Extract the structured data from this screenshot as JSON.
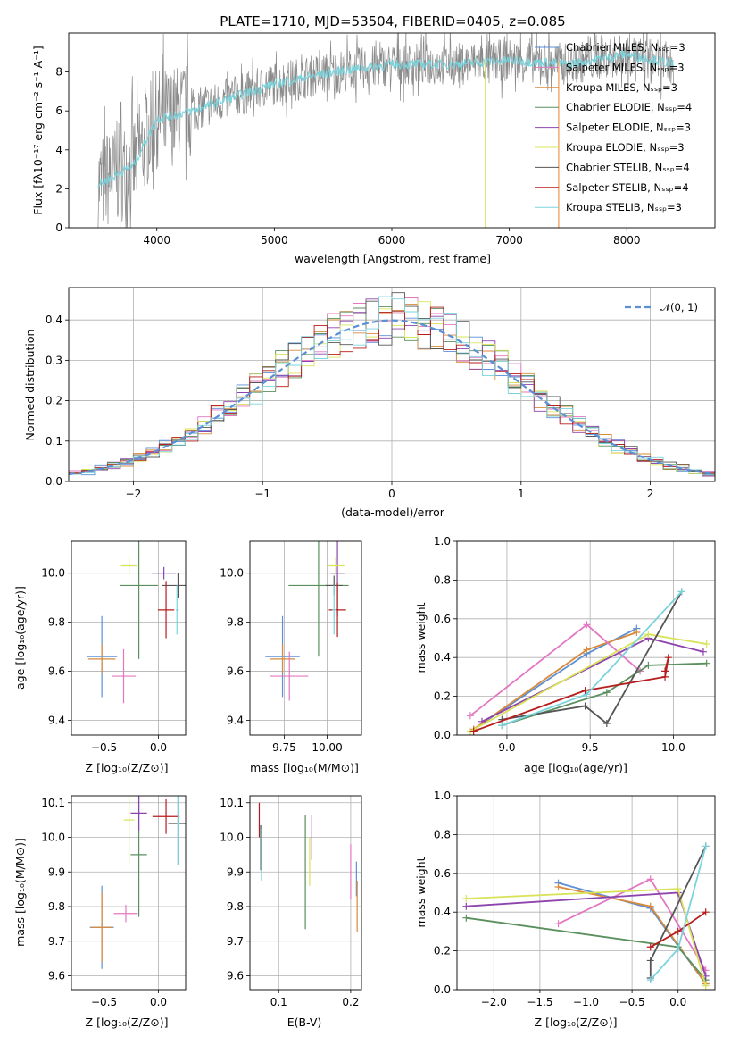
{
  "palette": [
    "#5b8fd6",
    "#e8822d",
    "#d98a3a",
    "#5a8f5e",
    "#8e44ad",
    "#d9e35a",
    "#555555",
    "#b71c1c",
    "#7ad3dc",
    "#e377c2"
  ],
  "chart_data": [
    {
      "id": "spectrum",
      "type": "line",
      "title": "PLATE=1710, MJD=53504, FIBERID=0405, z=0.085",
      "xlabel": "wavelength [Angstrom, rest frame]",
      "ylabel": "Flux [fλ10⁻¹⁷ erg cm⁻² s⁻¹ A⁻¹]",
      "xlim": [
        3250,
        8750
      ],
      "ylim": [
        0,
        10
      ],
      "xticks": [
        4000,
        5000,
        6000,
        7000,
        8000
      ],
      "yticks": [
        0,
        2,
        4,
        6,
        8
      ],
      "grid": false,
      "legend_position": "right",
      "series": [
        {
          "name": "Chabrier MILES, Nₛₛₚ=3",
          "color": "#5b8fd6"
        },
        {
          "name": "Salpeter MILES, Nₛₛₚ=3",
          "color": "#e377c2"
        },
        {
          "name": "Kroupa MILES, Nₛₛₚ=3",
          "color": "#d98a3a"
        },
        {
          "name": "Chabrier ELODIE, Nₛₛₚ=4",
          "color": "#5a8f5e"
        },
        {
          "name": "Salpeter ELODIE, Nₛₛₚ=3",
          "color": "#8e44ad"
        },
        {
          "name": "Kroupa ELODIE, Nₛₛₚ=3",
          "color": "#d9e35a"
        },
        {
          "name": "Chabrier STELIB, Nₛₛₚ=4",
          "color": "#555555"
        },
        {
          "name": "Salpeter STELIB, Nₛₛₚ=4",
          "color": "#b71c1c"
        },
        {
          "name": "Kroupa STELIB, Nₛₛₚ=3",
          "color": "#7ad3dc"
        }
      ],
      "envelope": {
        "x": [
          3500,
          3800,
          4000,
          4300,
          4700,
          5000,
          5500,
          6000,
          6500,
          7000,
          7500,
          8000,
          8400
        ],
        "y": [
          2.2,
          3.2,
          5.6,
          6.0,
          6.8,
          7.4,
          8.0,
          8.4,
          8.4,
          8.6,
          8.4,
          8.9,
          8.4
        ]
      }
    },
    {
      "id": "residuals",
      "type": "line",
      "xlabel": "(data-model)/error",
      "ylabel": "Normed distribution",
      "xlim": [
        -2.5,
        2.5
      ],
      "ylim": [
        0,
        0.48
      ],
      "xticks": [
        -2,
        -1,
        0,
        1,
        2
      ],
      "yticks": [
        0.0,
        0.1,
        0.2,
        0.3,
        0.4
      ],
      "grid": true,
      "legend_position": "top-right",
      "legend_label": "𝒩(0, 1)"
    },
    {
      "id": "age_vs_Z",
      "type": "scatter",
      "xlabel": "Z [log₁₀(Z/Z⊙)]",
      "ylabel": "age  [log₁₀(age/yr)]",
      "xlim": [
        -0.8,
        0.25
      ],
      "ylim": [
        9.34,
        10.13
      ],
      "xticks": [
        -0.5,
        0.0
      ],
      "yticks": [
        9.4,
        9.6,
        9.8,
        10.0
      ],
      "grid": true,
      "points": [
        {
          "x": -0.52,
          "y": 9.66,
          "xerr": 0.28,
          "yerr": 0.33,
          "color": "#5b8fd6"
        },
        {
          "x": -0.52,
          "y": 9.65,
          "xerr": 0.25,
          "yerr": 0.12,
          "color": "#d98a3a"
        },
        {
          "x": -0.32,
          "y": 9.58,
          "xerr": 0.22,
          "yerr": 0.22,
          "color": "#e377c2"
        },
        {
          "x": -0.18,
          "y": 9.95,
          "xerr": 0.35,
          "yerr": 0.6,
          "color": "#5a8f5e"
        },
        {
          "x": 0.05,
          "y": 10.0,
          "xerr": 0.22,
          "yerr": 0.05,
          "color": "#8e44ad"
        },
        {
          "x": -0.27,
          "y": 10.03,
          "xerr": 0.15,
          "yerr": 0.07,
          "color": "#d9e35a"
        },
        {
          "x": 0.18,
          "y": 9.95,
          "xerr": 0.3,
          "yerr": 0.1,
          "color": "#555555"
        },
        {
          "x": 0.07,
          "y": 9.85,
          "xerr": 0.15,
          "yerr": 0.23,
          "color": "#b71c1c"
        },
        {
          "x": 0.17,
          "y": 9.85,
          "xerr": 0.02,
          "yerr": 0.2,
          "color": "#7ad3dc"
        }
      ]
    },
    {
      "id": "age_vs_mass",
      "type": "scatter",
      "xlabel": "mass [log₁₀(M/M⊙)]",
      "ylabel": "",
      "xlim": [
        9.55,
        10.2
      ],
      "ylim": [
        9.34,
        10.13
      ],
      "xticks": [
        9.75,
        10.0
      ],
      "yticks": [
        9.4,
        9.6,
        9.8,
        10.0
      ],
      "grid": true,
      "points": [
        {
          "x": 9.74,
          "y": 9.66,
          "xerr": 0.2,
          "yerr": 0.33,
          "color": "#5b8fd6"
        },
        {
          "x": 9.74,
          "y": 9.65,
          "xerr": 0.15,
          "yerr": 0.12,
          "color": "#d98a3a"
        },
        {
          "x": 9.78,
          "y": 9.58,
          "xerr": 0.22,
          "yerr": 0.2,
          "color": "#e377c2"
        },
        {
          "x": 9.95,
          "y": 9.95,
          "xerr": 0.35,
          "yerr": 0.58,
          "color": "#5a8f5e"
        },
        {
          "x": 10.06,
          "y": 10.0,
          "xerr": 0.08,
          "yerr": 0.35,
          "color": "#8e44ad"
        },
        {
          "x": 10.05,
          "y": 10.03,
          "xerr": 0.1,
          "yerr": 0.07,
          "color": "#d9e35a"
        },
        {
          "x": 10.04,
          "y": 9.95,
          "xerr": 0.1,
          "yerr": 0.08,
          "color": "#555555"
        },
        {
          "x": 10.06,
          "y": 9.85,
          "xerr": 0.1,
          "yerr": 0.22,
          "color": "#b71c1c"
        },
        {
          "x": 10.04,
          "y": 9.85,
          "xerr": 0.02,
          "yerr": 0.2,
          "color": "#7ad3dc"
        }
      ]
    },
    {
      "id": "weight_vs_age",
      "type": "line",
      "xlabel": "age  [log₁₀(age/yr)]",
      "ylabel": "mass weight",
      "xlim": [
        8.7,
        10.25
      ],
      "ylim": [
        0,
        1
      ],
      "xticks": [
        9.0,
        9.5,
        10.0
      ],
      "yticks": [
        0.0,
        0.2,
        0.4,
        0.6,
        0.8,
        1.0
      ],
      "grid": true,
      "series": [
        {
          "color": "#5b8fd6",
          "x": [
            8.8,
            9.48,
            9.78
          ],
          "y": [
            0.03,
            0.42,
            0.55
          ]
        },
        {
          "color": "#d98a3a",
          "x": [
            8.8,
            9.48,
            9.78
          ],
          "y": [
            0.03,
            0.44,
            0.53
          ]
        },
        {
          "color": "#e377c2",
          "x": [
            8.78,
            9.48,
            9.8
          ],
          "y": [
            0.1,
            0.57,
            0.33
          ]
        },
        {
          "color": "#5a8f5e",
          "x": [
            8.97,
            9.6,
            9.85,
            10.2
          ],
          "y": [
            0.05,
            0.22,
            0.36,
            0.37
          ]
        },
        {
          "color": "#8e44ad",
          "x": [
            8.85,
            9.85,
            10.18
          ],
          "y": [
            0.07,
            0.5,
            0.43
          ]
        },
        {
          "color": "#d9e35a",
          "x": [
            8.78,
            9.85,
            10.2
          ],
          "y": [
            0.02,
            0.52,
            0.47
          ]
        },
        {
          "color": "#555555",
          "x": [
            8.97,
            9.47,
            9.6,
            10.05
          ],
          "y": [
            0.08,
            0.15,
            0.06,
            0.74
          ]
        },
        {
          "color": "#b71c1c",
          "x": [
            8.8,
            9.47,
            9.95,
            9.97,
            9.95
          ],
          "y": [
            0.02,
            0.23,
            0.3,
            0.4,
            0.33
          ]
        },
        {
          "color": "#7ad3dc",
          "x": [
            8.97,
            9.48,
            10.05
          ],
          "y": [
            0.05,
            0.21,
            0.74
          ]
        }
      ]
    },
    {
      "id": "mass_vs_Z",
      "type": "scatter",
      "xlabel": "Z [log₁₀(Z/Z⊙)]",
      "ylabel": "mass [log₁₀(M/M⊙)]",
      "xlim": [
        -0.8,
        0.25
      ],
      "ylim": [
        9.56,
        10.12
      ],
      "xticks": [
        -0.5,
        0.0
      ],
      "yticks": [
        9.6,
        9.7,
        9.8,
        9.9,
        10.0,
        10.1
      ],
      "grid": true,
      "points": [
        {
          "x": -0.52,
          "y": 9.74,
          "xerr": 0.22,
          "yerr": 0.24,
          "color": "#5b8fd6"
        },
        {
          "x": -0.52,
          "y": 9.74,
          "xerr": 0.2,
          "yerr": 0.2,
          "color": "#d98a3a"
        },
        {
          "x": -0.3,
          "y": 9.78,
          "xerr": 0.22,
          "yerr": 0.05,
          "color": "#e377c2"
        },
        {
          "x": -0.18,
          "y": 9.95,
          "xerr": 0.15,
          "yerr": 0.36,
          "color": "#5a8f5e"
        },
        {
          "x": -0.18,
          "y": 10.07,
          "xerr": 0.15,
          "yerr": 0.1,
          "color": "#8e44ad"
        },
        {
          "x": -0.27,
          "y": 10.05,
          "xerr": 0.1,
          "yerr": 0.25,
          "color": "#d9e35a"
        },
        {
          "x": 0.18,
          "y": 10.04,
          "xerr": 0.18,
          "yerr": 0.24,
          "color": "#555555"
        },
        {
          "x": 0.07,
          "y": 10.06,
          "xerr": 0.25,
          "yerr": 0.1,
          "color": "#b71c1c"
        },
        {
          "x": 0.18,
          "y": 10.04,
          "xerr": 0.02,
          "yerr": 0.24,
          "color": "#7ad3dc"
        }
      ]
    },
    {
      "id": "mass_vs_ebv",
      "type": "scatter",
      "xlabel": "E(B-V)",
      "ylabel": "",
      "xlim": [
        0.06,
        0.215
      ],
      "ylim": [
        9.56,
        10.12
      ],
      "xticks": [
        0.1,
        0.2
      ],
      "yticks": [
        9.6,
        9.7,
        9.8,
        9.9,
        10.0,
        10.1
      ],
      "grid": true,
      "points": [
        {
          "x": 0.208,
          "y": 9.88,
          "yerr": 0.1,
          "color": "#5b8fd6"
        },
        {
          "x": 0.209,
          "y": 9.8,
          "yerr": 0.15,
          "color": "#d98a3a"
        },
        {
          "x": 0.2,
          "y": 9.9,
          "yerr": 0.16,
          "color": "#e377c2"
        },
        {
          "x": 0.137,
          "y": 9.9,
          "yerr": 0.33,
          "color": "#5a8f5e"
        },
        {
          "x": 0.146,
          "y": 10.0,
          "yerr": 0.13,
          "color": "#8e44ad"
        },
        {
          "x": 0.143,
          "y": 9.93,
          "yerr": 0.14,
          "color": "#d9e35a"
        },
        {
          "x": 0.075,
          "y": 9.97,
          "yerr": 0.13,
          "color": "#555555"
        },
        {
          "x": 0.073,
          "y": 10.05,
          "yerr": 0.1,
          "color": "#b71c1c"
        },
        {
          "x": 0.076,
          "y": 9.95,
          "yerr": 0.15,
          "color": "#7ad3dc"
        }
      ]
    },
    {
      "id": "weight_vs_Z",
      "type": "line",
      "xlabel": "Z [log₁₀(Z/Z⊙)]",
      "ylabel": "mass weight",
      "xlim": [
        -2.4,
        0.4
      ],
      "ylim": [
        0,
        1
      ],
      "xticks": [
        -2.0,
        -1.5,
        -1.0,
        -0.5,
        0.0
      ],
      "yticks": [
        0.0,
        0.2,
        0.4,
        0.6,
        0.8,
        1.0
      ],
      "grid": true,
      "series": [
        {
          "color": "#5b8fd6",
          "x": [
            -1.3,
            -0.3,
            0.3
          ],
          "y": [
            0.55,
            0.42,
            0.03
          ]
        },
        {
          "color": "#d98a3a",
          "x": [
            -1.3,
            -0.3,
            0.3
          ],
          "y": [
            0.53,
            0.43,
            0.03
          ]
        },
        {
          "color": "#e377c2",
          "x": [
            -1.3,
            -0.3,
            0.3
          ],
          "y": [
            0.34,
            0.57,
            0.1
          ]
        },
        {
          "color": "#5a8f5e",
          "x": [
            -2.3,
            0.0,
            0.3
          ],
          "y": [
            0.37,
            0.22,
            0.05
          ]
        },
        {
          "color": "#8e44ad",
          "x": [
            -2.3,
            0.0,
            0.3
          ],
          "y": [
            0.43,
            0.5,
            0.07
          ]
        },
        {
          "color": "#d9e35a",
          "x": [
            -2.3,
            0.0,
            0.3
          ],
          "y": [
            0.47,
            0.52,
            0.02
          ]
        },
        {
          "color": "#555555",
          "x": [
            -0.3,
            -0.3,
            0.3
          ],
          "y": [
            0.06,
            0.15,
            0.74
          ]
        },
        {
          "color": "#b71c1c",
          "x": [
            -0.3,
            0.0,
            0.3
          ],
          "y": [
            0.22,
            0.3,
            0.4
          ]
        },
        {
          "color": "#7ad3dc",
          "x": [
            -0.3,
            0.0,
            0.3
          ],
          "y": [
            0.05,
            0.21,
            0.74
          ]
        }
      ]
    }
  ]
}
